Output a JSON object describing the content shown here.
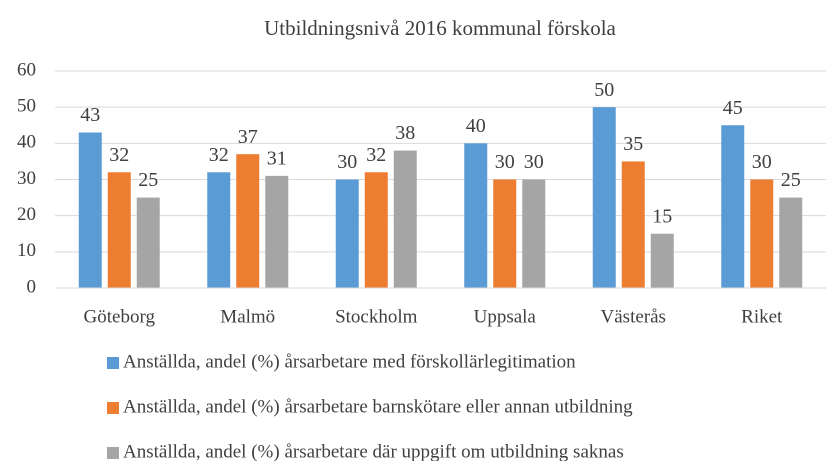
{
  "chart_data": {
    "type": "bar",
    "title": "Utbildningsnivå 2016 kommunal förskola",
    "categories": [
      "Göteborg",
      "Malmö",
      "Stockholm",
      "Uppsala",
      "Västerås",
      "Riket"
    ],
    "series": [
      {
        "name": "Anställda, andel (%) årsarbetare med förskollärlegitimation",
        "color": "#5b9bd5",
        "values": [
          43,
          32,
          30,
          40,
          50,
          45
        ]
      },
      {
        "name": "Anställda, andel (%) årsarbetare barnskötare eller annan utbildning",
        "color": "#ed7d31",
        "values": [
          32,
          37,
          32,
          30,
          35,
          30
        ]
      },
      {
        "name": "Anställda, andel (%) årsarbetare där uppgift om utbildning saknas",
        "color": "#a5a5a5",
        "values": [
          25,
          31,
          38,
          30,
          15,
          25
        ]
      }
    ],
    "ylim": [
      0,
      60
    ],
    "yticks": [
      0,
      10,
      20,
      30,
      40,
      50,
      60
    ],
    "grid": true,
    "legend": "bottom",
    "data_labels": true
  }
}
